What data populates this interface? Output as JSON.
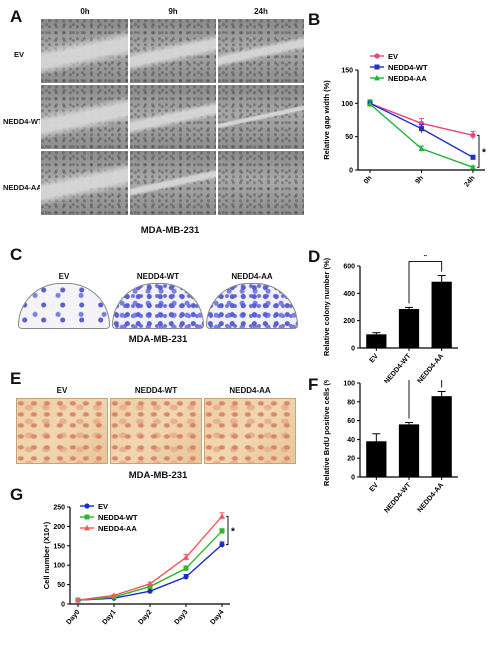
{
  "panel_letters": {
    "A": "A",
    "B": "B",
    "C": "C",
    "D": "D",
    "E": "E",
    "F": "F",
    "G": "G"
  },
  "panel_a": {
    "columns": [
      "0h",
      "9h",
      "24h"
    ],
    "rows": [
      "EV",
      "NEDD4-WT",
      "NEDD4-AA"
    ],
    "caption": "MDA-MB-231"
  },
  "panel_c": {
    "labels": [
      "EV",
      "NEDD4-WT",
      "NEDD4-AA"
    ],
    "caption": "MDA-MB-231"
  },
  "panel_e": {
    "labels": [
      "EV",
      "NEDD4-WT",
      "NEDD4-AA"
    ],
    "caption": "MDA-MB-231"
  },
  "chart_data": [
    {
      "panel": "B",
      "type": "line",
      "ylabel": "Relative gap width (%)",
      "categories": [
        "0h",
        "9h",
        "24h"
      ],
      "ylim": [
        0,
        150
      ],
      "yticks": [
        0,
        50,
        100,
        150
      ],
      "legend_position": "top-left",
      "series": [
        {
          "name": "EV",
          "color": "#e8467c",
          "values": [
            100,
            70,
            52
          ],
          "errors": [
            5,
            7,
            6
          ]
        },
        {
          "name": "NEDD4-WT",
          "color": "#2030c8",
          "values": [
            100,
            62,
            19
          ],
          "errors": [
            5,
            6,
            3
          ]
        },
        {
          "name": "NEDD4-AA",
          "color": "#22b33a",
          "values": [
            99,
            32,
            4
          ],
          "errors": [
            5,
            4,
            2
          ]
        }
      ],
      "annotation": "*"
    },
    {
      "panel": "D",
      "type": "bar",
      "ylabel": "Relative colony number (%)",
      "categories": [
        "EV",
        "NEDD4-WT",
        "NEDD4-AA"
      ],
      "values": [
        100,
        285,
        485
      ],
      "errors": [
        12,
        12,
        45
      ],
      "ylim": [
        0,
        600
      ],
      "yticks": [
        0,
        200,
        400,
        600
      ],
      "annotation": "*"
    },
    {
      "panel": "F",
      "type": "bar",
      "ylabel": "Relative BrdU positive cells (%)",
      "categories": [
        "EV",
        "NEDD4-WT",
        "NEDD4-AA"
      ],
      "values": [
        38,
        56,
        86
      ],
      "errors": [
        8,
        2,
        5
      ],
      "ylim": [
        0,
        100
      ],
      "yticks": [
        0,
        20,
        40,
        60,
        80,
        100
      ],
      "annotation": "*"
    },
    {
      "panel": "G",
      "type": "line",
      "ylabel": "Cell number (X10⁴)",
      "categories": [
        "Day0",
        "Day1",
        "Day2",
        "Day3",
        "Day4"
      ],
      "ylim": [
        0,
        250
      ],
      "yticks": [
        0,
        50,
        100,
        150,
        200,
        250
      ],
      "legend_position": "top-left",
      "series": [
        {
          "name": "EV",
          "color": "#1a2ad0",
          "values": [
            10,
            15,
            33,
            70,
            153
          ],
          "errors": [
            1,
            2,
            3,
            6,
            7
          ]
        },
        {
          "name": "NEDD4-WT",
          "color": "#2fb52f",
          "values": [
            10,
            18,
            45,
            92,
            188
          ],
          "errors": [
            1,
            2,
            3,
            6,
            6
          ]
        },
        {
          "name": "NEDD4-AA",
          "color": "#ee5a5a",
          "values": [
            10,
            22,
            52,
            120,
            226
          ],
          "errors": [
            1,
            2,
            4,
            8,
            9
          ]
        }
      ],
      "annotation": "*"
    }
  ]
}
